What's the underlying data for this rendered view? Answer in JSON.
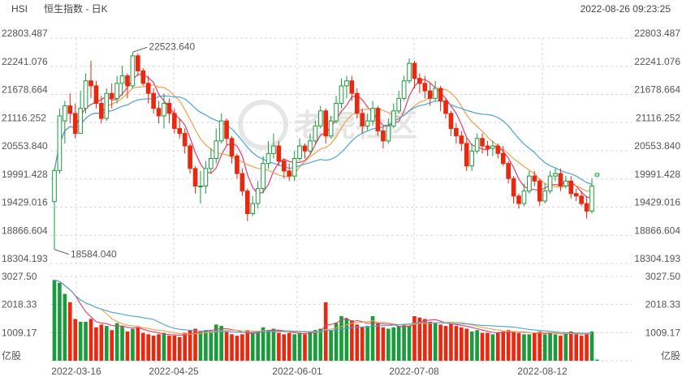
{
  "header": {
    "symbol": "HSI",
    "title": "恒生指数 - 日K",
    "datetime": "2022-08-26 09:23:25"
  },
  "watermark": {
    "text": "老虎社区"
  },
  "colors": {
    "up": "#1a9b3c",
    "down": "#e8280f",
    "ma5": "#e53c6a",
    "ma10": "#f0a04b",
    "ma20": "#4ba3d9",
    "grid": "#d8d8d8"
  },
  "chart_data": {
    "type": "candlestick",
    "price_axis": {
      "ticks": [
        "22803.487",
        "22241.076",
        "21678.664",
        "21116.252",
        "20553.840",
        "19991.428",
        "19429.016",
        "18866.604",
        "18304.193"
      ],
      "range": [
        18304.193,
        22803.487
      ]
    },
    "volume_axis": {
      "ticks": [
        "3027.50",
        "2018.33",
        "1009.17"
      ],
      "unit": "亿股",
      "range": [
        0,
        3027.5
      ]
    },
    "date_ticks": [
      "2022-03-16",
      "2022-04-25",
      "2022-06-01",
      "2022-07-08",
      "2022-08-12"
    ],
    "annotations": {
      "high": "22523.640",
      "low": "18584.040"
    },
    "candles": [
      [
        19540,
        20160,
        18584,
        20200,
        2900
      ],
      [
        20160,
        21250,
        20100,
        21400,
        2800
      ],
      [
        21150,
        21450,
        20700,
        21550,
        2400
      ],
      [
        21450,
        21300,
        21100,
        21700,
        2100
      ],
      [
        21300,
        20900,
        20800,
        21500,
        1500
      ],
      [
        20900,
        21400,
        20900,
        21750,
        1400
      ],
      [
        21400,
        21950,
        21300,
        22100,
        1400
      ],
      [
        21950,
        21850,
        21600,
        22350,
        1500
      ],
      [
        21850,
        21500,
        21400,
        21950,
        1200
      ],
      [
        21500,
        21200,
        21100,
        21650,
        1300
      ],
      [
        21200,
        21700,
        21150,
        21800,
        1250
      ],
      [
        21700,
        21600,
        21400,
        21900,
        1100
      ],
      [
        21600,
        21900,
        21500,
        22050,
        1350
      ],
      [
        21900,
        22050,
        21650,
        22250,
        1250
      ],
      [
        22050,
        21850,
        21600,
        22100,
        1050
      ],
      [
        21850,
        22450,
        21800,
        22523,
        1150
      ],
      [
        22450,
        22150,
        22050,
        22500,
        1200
      ],
      [
        22150,
        21900,
        21850,
        22200,
        1000
      ],
      [
        21900,
        21700,
        21500,
        22050,
        950
      ],
      [
        21700,
        21400,
        21300,
        21800,
        900
      ],
      [
        21400,
        21250,
        21100,
        21550,
        950
      ],
      [
        21250,
        21500,
        21000,
        21700,
        1000
      ],
      [
        21500,
        21300,
        21100,
        21600,
        900
      ],
      [
        21300,
        21000,
        20900,
        21400,
        900
      ],
      [
        21000,
        20900,
        20800,
        21200,
        850
      ],
      [
        20900,
        20650,
        20500,
        21000,
        1000
      ],
      [
        20650,
        20200,
        20100,
        20700,
        1100
      ],
      [
        20200,
        19850,
        19700,
        20250,
        1150
      ],
      [
        19850,
        19850,
        19500,
        20150,
        1050
      ],
      [
        19850,
        20200,
        19700,
        20350,
        1100
      ],
      [
        20200,
        20400,
        20100,
        20600,
        1050
      ],
      [
        20400,
        20750,
        20300,
        21000,
        1300
      ],
      [
        20750,
        21150,
        20700,
        21300,
        1250
      ],
      [
        21150,
        20800,
        20650,
        21200,
        1050
      ],
      [
        20800,
        20450,
        20300,
        20850,
        950
      ],
      [
        20450,
        20100,
        20000,
        20500,
        900
      ],
      [
        20100,
        19750,
        19650,
        20200,
        950
      ],
      [
        19750,
        19300,
        19150,
        19800,
        1100
      ],
      [
        19300,
        19500,
        19250,
        19650,
        1000
      ],
      [
        19500,
        19800,
        19400,
        19950,
        1050
      ],
      [
        19800,
        20300,
        19700,
        20450,
        1200
      ],
      [
        20300,
        20500,
        20200,
        20750,
        1100
      ],
      [
        20500,
        20650,
        20400,
        20900,
        1150
      ],
      [
        20650,
        20350,
        20250,
        20750,
        1000
      ],
      [
        20350,
        20150,
        20000,
        20400,
        950
      ],
      [
        20150,
        20050,
        19950,
        20300,
        1000
      ],
      [
        20050,
        20400,
        19950,
        20550,
        950
      ],
      [
        20400,
        20650,
        20350,
        20800,
        1000
      ],
      [
        20650,
        20550,
        20400,
        20700,
        950
      ],
      [
        20550,
        20750,
        20500,
        20900,
        1050
      ],
      [
        20750,
        21050,
        20700,
        21150,
        1100
      ],
      [
        21050,
        21350,
        21000,
        21450,
        1150
      ],
      [
        21350,
        20850,
        20700,
        21400,
        2100
      ],
      [
        20850,
        21150,
        20800,
        21250,
        1100
      ],
      [
        21150,
        21500,
        21100,
        21650,
        1350
      ],
      [
        21500,
        21850,
        21400,
        22000,
        1600
      ],
      [
        21850,
        21950,
        21600,
        22050,
        1500
      ],
      [
        21950,
        21700,
        21550,
        22050,
        1450
      ],
      [
        21700,
        21300,
        21200,
        21800,
        1300
      ],
      [
        21300,
        21050,
        20900,
        21400,
        1200
      ],
      [
        21050,
        21150,
        20950,
        21300,
        1250
      ],
      [
        21150,
        21400,
        21050,
        21550,
        1600
      ],
      [
        21400,
        20950,
        20850,
        21450,
        1350
      ],
      [
        20950,
        20750,
        20600,
        21050,
        1200
      ],
      [
        20750,
        21050,
        20700,
        21200,
        1150
      ],
      [
        21050,
        21350,
        21000,
        21500,
        1200
      ],
      [
        21350,
        21600,
        21300,
        21750,
        1250
      ],
      [
        21600,
        21950,
        21550,
        22050,
        1300
      ],
      [
        21950,
        22300,
        21900,
        22400,
        1250
      ],
      [
        22300,
        22000,
        21800,
        22350,
        1600
      ],
      [
        22000,
        21900,
        21700,
        22100,
        1550
      ],
      [
        21900,
        21750,
        21600,
        22050,
        1500
      ],
      [
        21750,
        21600,
        21450,
        21900,
        1400
      ],
      [
        21600,
        21800,
        21550,
        21950,
        1350
      ],
      [
        21800,
        21550,
        21350,
        21850,
        1300
      ],
      [
        21550,
        21300,
        21200,
        21600,
        1250
      ],
      [
        21300,
        21000,
        20850,
        21350,
        1350
      ],
      [
        21000,
        20850,
        20700,
        21100,
        1250
      ],
      [
        20850,
        20700,
        20550,
        20950,
        1200
      ],
      [
        20700,
        20250,
        20150,
        20800,
        1150
      ],
      [
        20250,
        20550,
        20150,
        20700,
        1050
      ],
      [
        20550,
        20800,
        20500,
        20900,
        1100
      ],
      [
        20800,
        20650,
        20500,
        20900,
        1000
      ],
      [
        20650,
        20600,
        20450,
        20750,
        1000
      ],
      [
        20600,
        20650,
        20450,
        20750,
        950
      ],
      [
        20650,
        20500,
        20400,
        20700,
        1000
      ],
      [
        20500,
        20300,
        20250,
        20650,
        1050
      ],
      [
        20300,
        20000,
        19900,
        20350,
        1100
      ],
      [
        20000,
        19650,
        19500,
        20050,
        1050
      ],
      [
        19650,
        19500,
        19400,
        19700,
        1000
      ],
      [
        19500,
        19750,
        19450,
        19900,
        950
      ],
      [
        19750,
        20050,
        19700,
        20150,
        950
      ],
      [
        20050,
        19950,
        19850,
        20150,
        1000
      ],
      [
        19950,
        19550,
        19450,
        20000,
        1050
      ],
      [
        19550,
        19750,
        19500,
        19900,
        950
      ],
      [
        19750,
        20050,
        19700,
        20150,
        1000
      ],
      [
        20050,
        20100,
        19950,
        20200,
        950
      ],
      [
        20100,
        19850,
        19750,
        20200,
        900
      ],
      [
        19850,
        19950,
        19800,
        20050,
        1000
      ],
      [
        19950,
        19700,
        19600,
        20050,
        1050
      ],
      [
        19700,
        19650,
        19550,
        19800,
        950
      ],
      [
        19650,
        19500,
        19450,
        19750,
        900
      ],
      [
        19500,
        19350,
        19200,
        19650,
        950
      ],
      [
        19350,
        19850,
        19300,
        20000,
        1050
      ],
      [
        20050,
        20100,
        20040,
        20110,
        40
      ]
    ]
  }
}
